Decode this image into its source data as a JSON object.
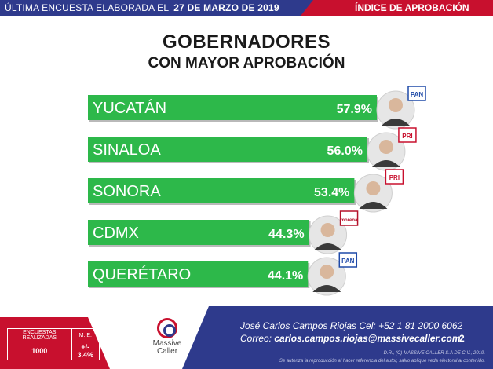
{
  "header": {
    "left_text": "ÚLTIMA ENCUESTA ELABORADA EL",
    "date": "27 DE MARZO DE 2019",
    "right_text": "ÍNDICE DE APROBACIÓN"
  },
  "colors": {
    "bar": "#2db84a",
    "navy": "#2e3a8c",
    "red": "#c8102e"
  },
  "chart_data": {
    "type": "bar",
    "orientation": "horizontal",
    "title": "GOBERNADORES",
    "subtitle": "CON MAYOR APROBACIÓN",
    "categories": [
      "YUCATÁN",
      "SINALOA",
      "SONORA",
      "CDMX",
      "QUERÉTARO"
    ],
    "values": [
      57.9,
      56.0,
      53.4,
      44.3,
      44.1
    ],
    "value_labels": [
      "57.9%",
      "56.0%",
      "53.4%",
      "44.3%",
      "44.1%"
    ],
    "parties": [
      "PAN",
      "PRI",
      "PRI",
      "morena",
      "PAN"
    ],
    "xlim": [
      0,
      57.9
    ],
    "grid": false,
    "legend": "none"
  },
  "footer": {
    "encuestas_label": "ENCUESTAS REALIZADAS",
    "me_label": "M. E.",
    "encuestas_value": "1000",
    "me_value": "+/- 3.4%",
    "logo_name": "Massive Caller",
    "contact_line": "José Carlos Campos Riojas Cel: +52 1 81 2000 6062",
    "email_label": "Correo:",
    "email": "carlos.campos.riojas@massivecaller.com",
    "page_number": "2",
    "legal_line1": "D.R., (C) MASSIVE CALLER S.A DE C.V., 2019.",
    "legal_line2": "Se autoriza la reproducción al hacer referencia del autor, salvo aplique veda electoral al contenido."
  }
}
